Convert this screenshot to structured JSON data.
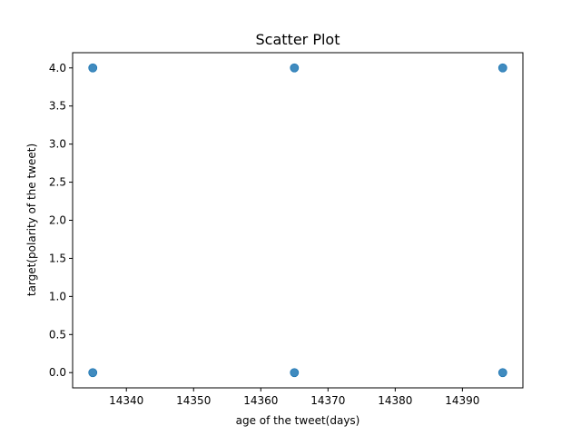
{
  "chart_data": {
    "type": "scatter",
    "title": "Scatter Plot",
    "xlabel": "age of the tweet(days)",
    "ylabel": "target(polarity of the tweet)",
    "xlim": [
      14332.0,
      14399.0
    ],
    "ylim": [
      -0.2,
      4.2
    ],
    "xticks": [
      14340,
      14350,
      14360,
      14370,
      14380,
      14390
    ],
    "xtick_labels": [
      "14340",
      "14350",
      "14360",
      "14370",
      "14380",
      "14390"
    ],
    "yticks": [
      0.0,
      0.5,
      1.0,
      1.5,
      2.0,
      2.5,
      3.0,
      3.5,
      4.0
    ],
    "ytick_labels": [
      "0.0",
      "0.5",
      "1.0",
      "1.5",
      "2.0",
      "2.5",
      "3.0",
      "3.5",
      "4.0"
    ],
    "grid": false,
    "series": [
      {
        "color": "#1f77b4",
        "x": [
          14335,
          14335,
          14365,
          14365,
          14396,
          14396
        ],
        "y": [
          0,
          4,
          0,
          4,
          0,
          4
        ]
      }
    ]
  }
}
